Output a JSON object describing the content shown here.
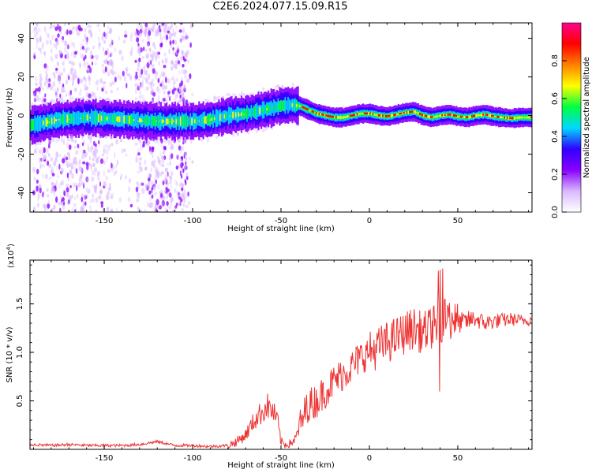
{
  "title": "C2E6.2024.077.15.09.R15",
  "chart_data": [
    {
      "type": "heatmap",
      "xlabel": "Height of straight line (km)",
      "ylabel": "Frequency (Hz)",
      "xlim": [
        -192,
        92
      ],
      "ylim": [
        -50,
        48
      ],
      "xticks": [
        -150,
        -100,
        -50,
        0,
        50
      ],
      "yticks": [
        -40,
        -20,
        0,
        20,
        40
      ],
      "colorbar": {
        "label": "Normalized spectral amplitude",
        "range": [
          0,
          1
        ],
        "ticks": [
          "0.0",
          "0.2",
          "0.4",
          "0.6",
          "0.8"
        ],
        "colors": [
          "#ffffff",
          "#d9b8ff",
          "#8a00ff",
          "#3000ff",
          "#00d8ff",
          "#00ff40",
          "#ffff00",
          "#ff8000",
          "#ff0000",
          "#ff0090"
        ]
      },
      "ridge_center": {
        "x": [
          -192,
          -175,
          -160,
          -140,
          -120,
          -100,
          -90,
          -80,
          -70,
          -60,
          -50,
          -45,
          -40,
          -35,
          -30,
          -25,
          -20,
          -15,
          -10,
          -5,
          0,
          5,
          10,
          15,
          20,
          25,
          30,
          35,
          40,
          45,
          50,
          55,
          60,
          65,
          70,
          75,
          80,
          85,
          90
        ],
        "y": [
          -5,
          -2,
          -1,
          -2,
          -3,
          -3,
          -2,
          0,
          1,
          3,
          5,
          5.5,
          5,
          3,
          1,
          0,
          -1,
          -1,
          0,
          1,
          1,
          0,
          -0.5,
          0.5,
          1.5,
          2,
          0,
          -1,
          0,
          0.5,
          -0.5,
          -1,
          0,
          0.5,
          -0.5,
          -1,
          -1.5,
          -1,
          -1
        ]
      },
      "noise_bands_x": [
        [
          -190,
          -145
        ],
        [
          -132,
          -103
        ],
        [
          -190,
          -100
        ]
      ]
    },
    {
      "type": "line",
      "xlabel": "Height of straight line (km)",
      "ylabel": "SNR (10 * v/v)",
      "scale_note": "(x10",
      "scale_exp": "4",
      "xlim": [
        -192,
        92
      ],
      "ylim": [
        0,
        1.95
      ],
      "xticks": [
        -150,
        -100,
        -50,
        0,
        50
      ],
      "yticks": [
        "0.5",
        "1.0",
        "1.5"
      ],
      "color": "#ee3333",
      "series": [
        {
          "x": [
            -192,
            -180,
            -170,
            -160,
            -150,
            -140,
            -130,
            -120,
            -110,
            -100,
            -90,
            -80,
            -75,
            -70,
            -65,
            -60,
            -58,
            -55,
            -52,
            -50,
            -48,
            -45,
            -42,
            -40,
            -38,
            -35,
            -30,
            -25,
            -20,
            -15,
            -10,
            -5,
            0,
            5,
            10,
            15,
            20,
            25,
            30,
            35,
            40,
            45,
            50,
            55,
            60,
            65,
            70,
            75,
            80,
            85,
            90
          ],
          "y": [
            0.05,
            0.04,
            0.05,
            0.04,
            0.04,
            0.04,
            0.05,
            0.08,
            0.04,
            0.04,
            0.03,
            0.04,
            0.08,
            0.15,
            0.3,
            0.4,
            0.45,
            0.4,
            0.3,
            0.08,
            0.05,
            0.06,
            0.1,
            0.2,
            0.3,
            0.45,
            0.5,
            0.6,
            0.7,
            0.78,
            0.85,
            0.95,
            1.0,
            1.05,
            1.1,
            1.15,
            1.2,
            1.25,
            1.2,
            1.25,
            1.3,
            1.35,
            1.3,
            1.32,
            1.35,
            1.3,
            1.32,
            1.33,
            1.34,
            1.33,
            1.33
          ]
        }
      ]
    }
  ]
}
